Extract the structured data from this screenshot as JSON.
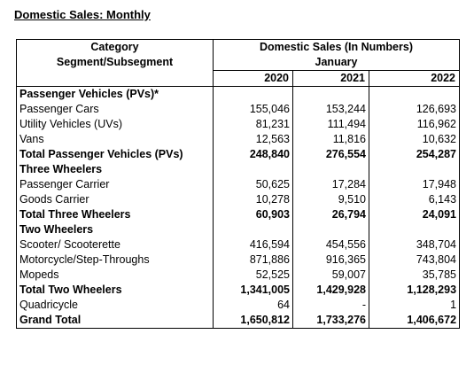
{
  "title": "Domestic Sales: Monthly",
  "header": {
    "category_line1": "Category",
    "category_line2": "Segment/Subsegment",
    "metric": "Domestic Sales (In Numbers)",
    "month": "January",
    "years": [
      "2020",
      "2021",
      "2022"
    ]
  },
  "rows": [
    {
      "label": "Passenger Vehicles (PVs)*",
      "values": [
        "",
        "",
        ""
      ],
      "type": "section"
    },
    {
      "label": "Passenger Cars",
      "values": [
        "155,046",
        "153,244",
        "126,693"
      ],
      "type": "data"
    },
    {
      "label": "Utility Vehicles (UVs)",
      "values": [
        "81,231",
        "111,494",
        "116,962"
      ],
      "type": "data"
    },
    {
      "label": "Vans",
      "values": [
        "12,563",
        "11,816",
        "10,632"
      ],
      "type": "data"
    },
    {
      "label": "Total Passenger Vehicles (PVs)",
      "values": [
        "248,840",
        "276,554",
        "254,287"
      ],
      "type": "total-wrap"
    },
    {
      "label": "Three Wheelers",
      "values": [
        "",
        "",
        ""
      ],
      "type": "section"
    },
    {
      "label": "Passenger Carrier",
      "values": [
        "50,625",
        "17,284",
        "17,948"
      ],
      "type": "data"
    },
    {
      "label": "Goods Carrier",
      "values": [
        "10,278",
        "9,510",
        "6,143"
      ],
      "type": "data"
    },
    {
      "label": "Total Three Wheelers",
      "values": [
        "60,903",
        "26,794",
        "24,091"
      ],
      "type": "total"
    },
    {
      "label": "Two Wheelers",
      "values": [
        "",
        "",
        ""
      ],
      "type": "section"
    },
    {
      "label": "Scooter/ Scooterette",
      "values": [
        "416,594",
        "454,556",
        "348,704"
      ],
      "type": "data"
    },
    {
      "label": "Motorcycle/Step-Throughs",
      "values": [
        "871,886",
        "916,365",
        "743,804"
      ],
      "type": "data"
    },
    {
      "label": "Mopeds",
      "values": [
        "52,525",
        "59,007",
        "35,785"
      ],
      "type": "data"
    },
    {
      "label": "Total Two Wheelers",
      "values": [
        "1,341,005",
        "1,429,928",
        "1,128,293"
      ],
      "type": "total"
    },
    {
      "label": "Quadricycle",
      "values": [
        "64",
        "-",
        "1"
      ],
      "type": "data"
    },
    {
      "label": "Grand Total",
      "values": [
        "1,650,812",
        "1,733,276",
        "1,406,672"
      ],
      "type": "total"
    }
  ]
}
